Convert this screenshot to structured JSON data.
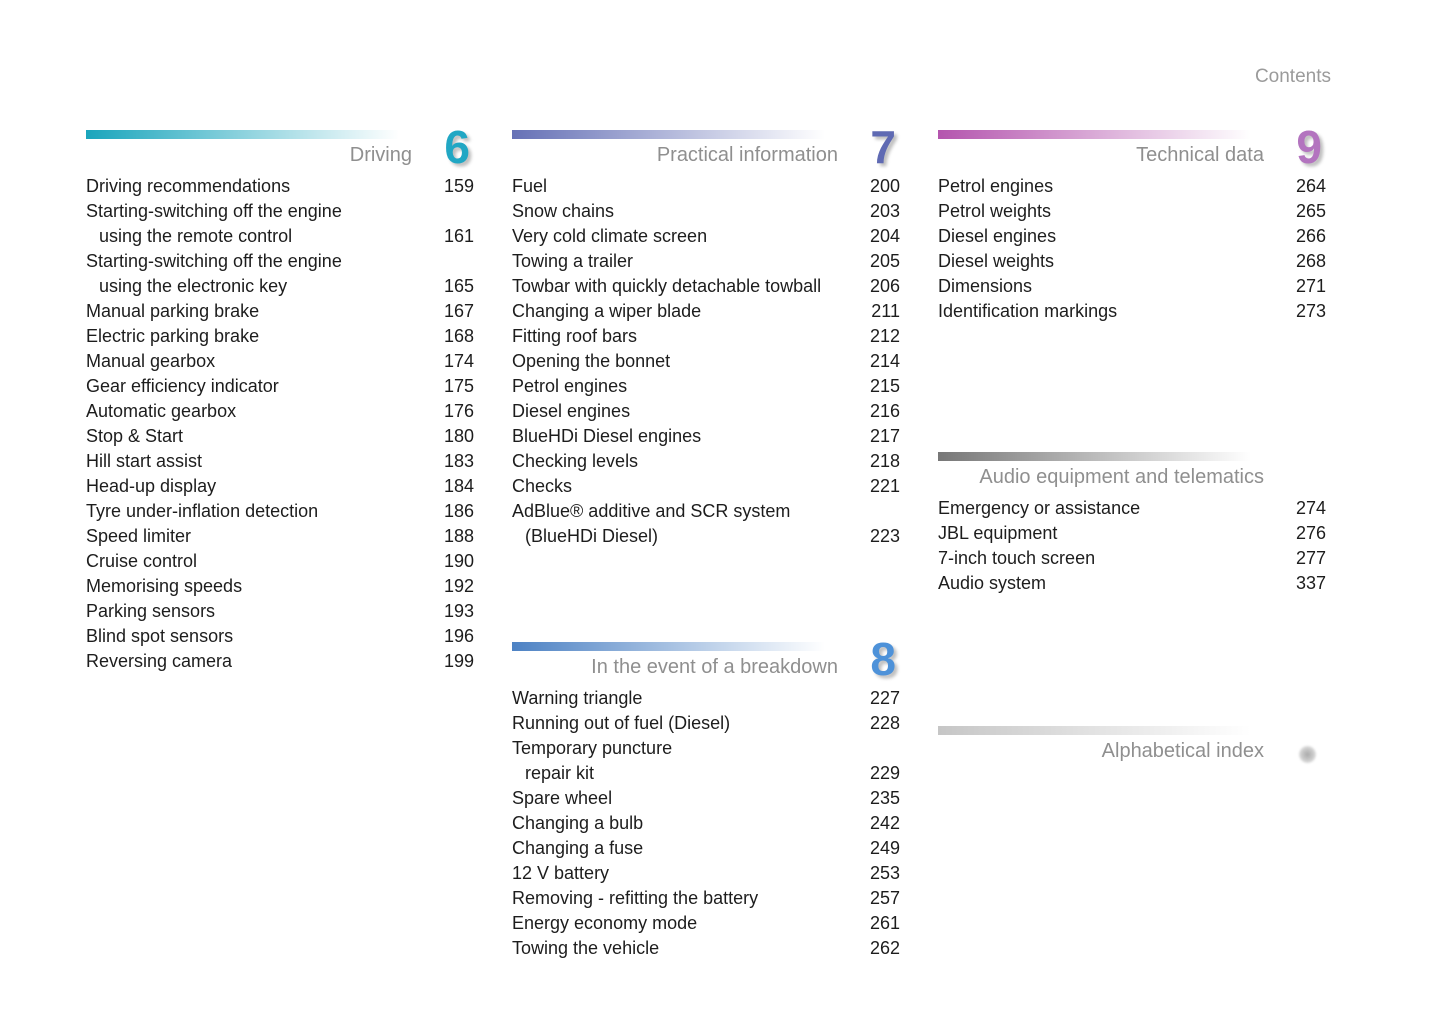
{
  "header": {
    "title": "Contents"
  },
  "columns": [
    {
      "sections": [
        {
          "title": "Driving",
          "number": "6",
          "bar_color": "#1aa5bc",
          "number_color": "#21a7c4",
          "entries": [
            {
              "label": "Driving recommendations",
              "page": "159"
            },
            {
              "label": "Starting-switching off the engine",
              "label2": "using the remote control",
              "page": "161"
            },
            {
              "label": "Starting-switching off the engine",
              "label2": "using the electronic key",
              "page": "165"
            },
            {
              "label": "Manual parking brake",
              "page": "167"
            },
            {
              "label": "Electric parking brake",
              "page": "168"
            },
            {
              "label": "Manual gearbox",
              "page": "174"
            },
            {
              "label": "Gear efficiency indicator",
              "page": "175"
            },
            {
              "label": "Automatic gearbox",
              "page": "176"
            },
            {
              "label": "Stop & Start",
              "page": "180"
            },
            {
              "label": "Hill start assist",
              "page": "183"
            },
            {
              "label": "Head-up display",
              "page": "184"
            },
            {
              "label": "Tyre under-inflation detection",
              "page": "186"
            },
            {
              "label": "Speed limiter",
              "page": "188"
            },
            {
              "label": "Cruise control",
              "page": "190"
            },
            {
              "label": "Memorising speeds",
              "page": "192"
            },
            {
              "label": "Parking sensors",
              "page": "193"
            },
            {
              "label": "Blind spot sensors",
              "page": "196"
            },
            {
              "label": "Reversing camera",
              "page": "199"
            }
          ]
        }
      ]
    },
    {
      "sections": [
        {
          "title": "Practical information",
          "number": "7",
          "bar_color": "#6671b6",
          "number_color": "#5f6ab3",
          "entries": [
            {
              "label": "Fuel",
              "page": "200"
            },
            {
              "label": "Snow chains",
              "page": "203"
            },
            {
              "label": "Very cold climate screen",
              "page": "204"
            },
            {
              "label": "Towing a trailer",
              "page": "205"
            },
            {
              "label": "Towbar with quickly detachable towball",
              "page": "206"
            },
            {
              "label": "Changing a wiper blade",
              "page": "211"
            },
            {
              "label": "Fitting roof bars",
              "page": "212"
            },
            {
              "label": "Opening the bonnet",
              "page": "214"
            },
            {
              "label": "Petrol engines",
              "page": "215"
            },
            {
              "label": "Diesel engines",
              "page": "216"
            },
            {
              "label": "BlueHDi Diesel engines",
              "page": "217"
            },
            {
              "label": "Checking levels",
              "page": "218"
            },
            {
              "label": "Checks",
              "page": "221"
            },
            {
              "label": "AdBlue® additive and SCR system",
              "label2": "(BlueHDi Diesel)",
              "page": "223"
            }
          ]
        },
        {
          "title": "In the event of a breakdown",
          "number": "8",
          "bar_color": "#4d82c4",
          "number_color": "#4e92d9",
          "entries": [
            {
              "label": "Warning triangle",
              "page": "227"
            },
            {
              "label": "Running out of fuel (Diesel)",
              "page": "228"
            },
            {
              "label": "Temporary puncture",
              "label2": "repair kit",
              "page": "229"
            },
            {
              "label": "Spare wheel",
              "page": "235"
            },
            {
              "label": "Changing a bulb",
              "page": "242"
            },
            {
              "label": "Changing a fuse",
              "page": "249"
            },
            {
              "label": "12 V battery",
              "page": "253"
            },
            {
              "label": "Removing - refitting the battery",
              "page": "257"
            },
            {
              "label": "Energy economy mode",
              "page": "261"
            },
            {
              "label": "Towing the vehicle",
              "page": "262"
            }
          ]
        }
      ]
    },
    {
      "sections": [
        {
          "title": "Technical data",
          "number": "9",
          "bar_color": "#b455ae",
          "number_color": "#b374bf",
          "entries": [
            {
              "label": "Petrol engines",
              "page": "264"
            },
            {
              "label": "Petrol weights",
              "page": "265"
            },
            {
              "label": "Diesel engines",
              "page": "266"
            },
            {
              "label": "Diesel weights",
              "page": "268"
            },
            {
              "label": "Dimensions",
              "page": "271"
            },
            {
              "label": "Identification markings",
              "page": "273"
            }
          ]
        },
        {
          "title": "Audio equipment and telematics",
          "number": "",
          "bar_color": "#777777",
          "number_color": "#777777",
          "entries": [
            {
              "label": "Emergency or assistance",
              "page": "274"
            },
            {
              "label": "JBL equipment",
              "page": "276"
            },
            {
              "label": "7-inch touch screen",
              "page": "277"
            },
            {
              "label": "Audio system",
              "page": "337"
            }
          ]
        },
        {
          "title": "Alphabetical index",
          "number": "",
          "bar_color": "#c6c6c6",
          "number_color": "#c6c6c6",
          "entries": []
        }
      ]
    }
  ]
}
